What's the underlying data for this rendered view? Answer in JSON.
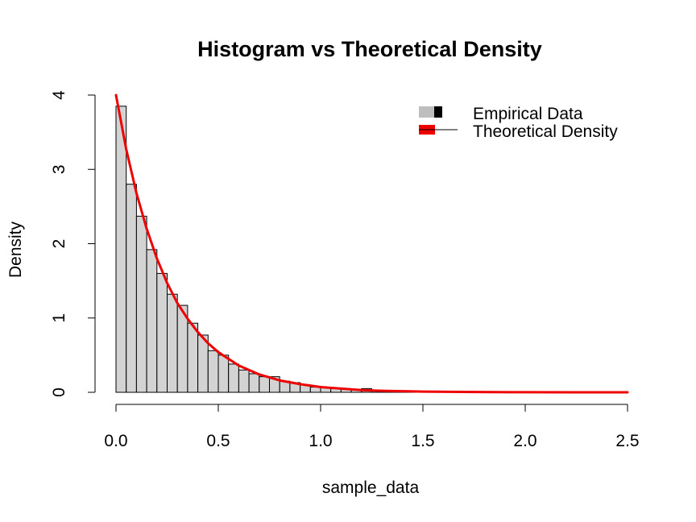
{
  "chart_data": {
    "type": "histogram",
    "title": "Histogram vs Theoretical Density",
    "xlabel": "sample_data",
    "ylabel": "Density",
    "xlim": [
      0,
      2.5
    ],
    "ylim": [
      0,
      4
    ],
    "x_ticks": [
      "0.0",
      "0.5",
      "1.0",
      "1.5",
      "2.0",
      "2.5"
    ],
    "y_ticks": [
      "0",
      "1",
      "2",
      "3",
      "4"
    ],
    "bin_width": 0.05,
    "bins": [
      {
        "x0": 0.0,
        "x1": 0.05,
        "density": 3.85
      },
      {
        "x0": 0.05,
        "x1": 0.1,
        "density": 2.8
      },
      {
        "x0": 0.1,
        "x1": 0.15,
        "density": 2.37
      },
      {
        "x0": 0.15,
        "x1": 0.2,
        "density": 1.92
      },
      {
        "x0": 0.2,
        "x1": 0.25,
        "density": 1.6
      },
      {
        "x0": 0.25,
        "x1": 0.3,
        "density": 1.32
      },
      {
        "x0": 0.3,
        "x1": 0.35,
        "density": 1.17
      },
      {
        "x0": 0.35,
        "x1": 0.4,
        "density": 0.93
      },
      {
        "x0": 0.4,
        "x1": 0.45,
        "density": 0.77
      },
      {
        "x0": 0.45,
        "x1": 0.5,
        "density": 0.56
      },
      {
        "x0": 0.5,
        "x1": 0.55,
        "density": 0.5
      },
      {
        "x0": 0.55,
        "x1": 0.6,
        "density": 0.38
      },
      {
        "x0": 0.6,
        "x1": 0.65,
        "density": 0.3
      },
      {
        "x0": 0.65,
        "x1": 0.7,
        "density": 0.25
      },
      {
        "x0": 0.7,
        "x1": 0.75,
        "density": 0.21
      },
      {
        "x0": 0.75,
        "x1": 0.8,
        "density": 0.21
      },
      {
        "x0": 0.8,
        "x1": 0.85,
        "density": 0.15
      },
      {
        "x0": 0.85,
        "x1": 0.9,
        "density": 0.13
      },
      {
        "x0": 0.9,
        "x1": 0.95,
        "density": 0.1
      },
      {
        "x0": 0.95,
        "x1": 1.0,
        "density": 0.07
      },
      {
        "x0": 1.0,
        "x1": 1.05,
        "density": 0.06
      },
      {
        "x0": 1.05,
        "x1": 1.1,
        "density": 0.05
      },
      {
        "x0": 1.1,
        "x1": 1.15,
        "density": 0.05
      },
      {
        "x0": 1.15,
        "x1": 1.2,
        "density": 0.03
      },
      {
        "x0": 1.2,
        "x1": 1.25,
        "density": 0.05
      },
      {
        "x0": 1.25,
        "x1": 1.3,
        "density": 0.02
      },
      {
        "x0": 1.3,
        "x1": 1.35,
        "density": 0.02
      },
      {
        "x0": 1.35,
        "x1": 1.4,
        "density": 0.01
      },
      {
        "x0": 1.4,
        "x1": 1.45,
        "density": 0.01
      },
      {
        "x0": 1.45,
        "x1": 1.5,
        "density": 0.01
      }
    ],
    "series": [
      {
        "name": "Theoretical Density",
        "type": "line",
        "color": "#ee0000",
        "x": [
          0,
          0.05,
          0.1,
          0.15,
          0.2,
          0.25,
          0.3,
          0.35,
          0.4,
          0.45,
          0.5,
          0.6,
          0.7,
          0.8,
          0.9,
          1.0,
          1.1,
          1.2,
          1.3,
          1.4,
          1.5,
          1.75,
          2.0,
          2.25,
          2.5
        ],
        "y": [
          4.0,
          3.27,
          2.68,
          2.2,
          1.8,
          1.47,
          1.2,
          0.99,
          0.81,
          0.66,
          0.54,
          0.36,
          0.24,
          0.16,
          0.11,
          0.07,
          0.05,
          0.03,
          0.02,
          0.015,
          0.01,
          0.004,
          0.001,
          0.0002,
          5e-05
        ]
      }
    ],
    "legend": {
      "position": "top-right",
      "entries": [
        {
          "label": "Empirical Data",
          "fill": "#bebebe",
          "border": "#000000"
        },
        {
          "label": "Theoretical Density",
          "fill": "#ee0000",
          "line": "#000000"
        }
      ]
    },
    "colors": {
      "bar_fill": "#d3d3d3",
      "bar_border": "#000000",
      "curve": "#ee0000"
    }
  }
}
